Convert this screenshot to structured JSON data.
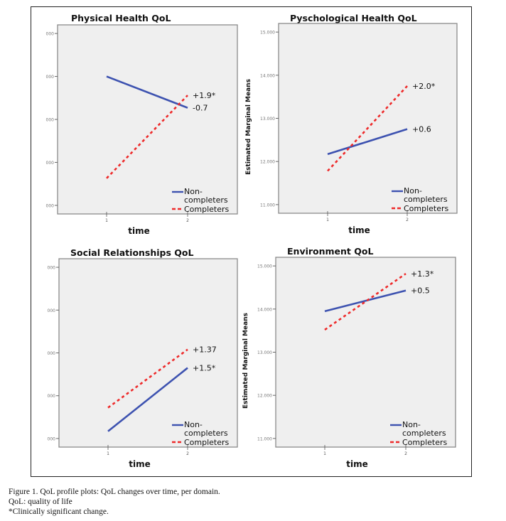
{
  "figure": {
    "caption_lines": [
      "Figure 1.  QoL profile plots: QoL changes over time, per domain.",
      "QoL: quality of life",
      "*Clinically significant change."
    ]
  },
  "colors": {
    "non_completers": "#3d52b0",
    "completers": "#ee2a2a",
    "plot_bg": "#efefef",
    "plot_border": "#8a8a8a"
  },
  "legend": {
    "items": [
      {
        "label_lines": [
          "Non-",
          "completers"
        ],
        "series": "non_completers"
      },
      {
        "label_lines": [
          "Completers"
        ],
        "series": "completers"
      }
    ]
  },
  "chart_data": [
    {
      "type": "line",
      "title": "Physical Health QoL",
      "xlabel": "time",
      "ylabel": "",
      "x": [
        1,
        2
      ],
      "x_tick_labels": [
        "1",
        "2"
      ],
      "y_tick_labels": [
        "000",
        "000",
        "000",
        "000",
        "000"
      ],
      "y_ticks": [
        4,
        3,
        2,
        1,
        0
      ],
      "ylim": [
        -0.2,
        4.2
      ],
      "series": [
        {
          "name": "Non-completers",
          "key": "non_completers",
          "values": [
            3.0,
            2.27
          ],
          "annotation": "-0.7"
        },
        {
          "name": "Completers",
          "key": "completers",
          "values": [
            0.63,
            2.56
          ],
          "annotation": "+1.9*"
        }
      ],
      "legend": "bottom-right"
    },
    {
      "type": "line",
      "title": "Pyschological Health QoL",
      "xlabel": "time",
      "ylabel": "Estimated Marginal Means",
      "x": [
        1,
        2
      ],
      "x_tick_labels": [
        "1",
        "2"
      ],
      "y_tick_labels": [
        "15.000",
        "14.000",
        "13.000",
        "12.000",
        "11.000"
      ],
      "y_ticks": [
        15,
        14,
        13,
        12,
        11
      ],
      "ylim": [
        10.8,
        15.2
      ],
      "series": [
        {
          "name": "Non-completers",
          "key": "non_completers",
          "values": [
            12.17,
            12.75
          ],
          "annotation": "+0.6"
        },
        {
          "name": "Completers",
          "key": "completers",
          "values": [
            11.78,
            13.75
          ],
          "annotation": "+2.0*"
        }
      ],
      "legend": "bottom-right"
    },
    {
      "type": "line",
      "title": "Social Relationships QoL",
      "xlabel": "time",
      "ylabel": "",
      "x": [
        1,
        2
      ],
      "x_tick_labels": [
        "1",
        "2"
      ],
      "y_tick_labels": [
        "000",
        "000",
        "000",
        "000",
        "000"
      ],
      "y_ticks": [
        4,
        3,
        2,
        1,
        0
      ],
      "ylim": [
        -0.2,
        4.2
      ],
      "series": [
        {
          "name": "Non-completers",
          "key": "non_completers",
          "values": [
            0.17,
            1.65
          ],
          "annotation": "+1.5*"
        },
        {
          "name": "Completers",
          "key": "completers",
          "values": [
            0.72,
            2.08
          ],
          "annotation": "+1.37"
        }
      ],
      "legend": "bottom-right"
    },
    {
      "type": "line",
      "title": "Environment QoL",
      "xlabel": "time",
      "ylabel": "Estimated Marginal Means",
      "x": [
        1,
        2
      ],
      "x_tick_labels": [
        "1",
        "2"
      ],
      "y_tick_labels": [
        "15.000",
        "14.000",
        "13.000",
        "12.000",
        "11.000"
      ],
      "y_ticks": [
        15,
        14,
        13,
        12,
        11
      ],
      "ylim": [
        10.8,
        15.2
      ],
      "series": [
        {
          "name": "Non-completers",
          "key": "non_completers",
          "values": [
            13.95,
            14.43
          ],
          "annotation": "+0.5"
        },
        {
          "name": "Completers",
          "key": "completers",
          "values": [
            13.52,
            14.82
          ],
          "annotation": "+1.3*"
        }
      ],
      "legend": "bottom-right"
    }
  ]
}
